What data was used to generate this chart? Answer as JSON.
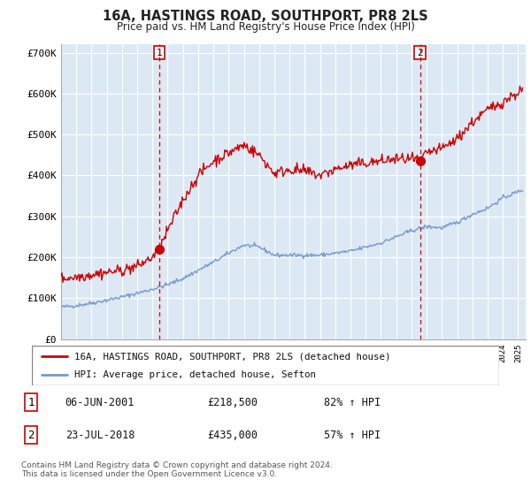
{
  "title_line1": "16A, HASTINGS ROAD, SOUTHPORT, PR8 2LS",
  "title_line2": "Price paid vs. HM Land Registry's House Price Index (HPI)",
  "ylabel_ticks": [
    "£0",
    "£100K",
    "£200K",
    "£300K",
    "£400K",
    "£500K",
    "£600K",
    "£700K"
  ],
  "ytick_values": [
    0,
    100000,
    200000,
    300000,
    400000,
    500000,
    600000,
    700000
  ],
  "ylim": [
    0,
    720000
  ],
  "xlim_start": 1995.0,
  "xlim_end": 2025.5,
  "color_house": "#cc0000",
  "color_hpi": "#7799cc",
  "color_dashed": "#cc0000",
  "plot_bg_color": "#dce9f5",
  "marker1_x": 2001.44,
  "marker1_y": 218500,
  "marker2_x": 2018.56,
  "marker2_y": 435000,
  "legend_house_label": "16A, HASTINGS ROAD, SOUTHPORT, PR8 2LS (detached house)",
  "legend_hpi_label": "HPI: Average price, detached house, Sefton",
  "table_row1": [
    "1",
    "06-JUN-2001",
    "£218,500",
    "82% ↑ HPI"
  ],
  "table_row2": [
    "2",
    "23-JUL-2018",
    "£435,000",
    "57% ↑ HPI"
  ],
  "footnote": "Contains HM Land Registry data © Crown copyright and database right 2024.\nThis data is licensed under the Open Government Licence v3.0.",
  "background_color": "#ffffff",
  "grid_color": "#ffffff"
}
